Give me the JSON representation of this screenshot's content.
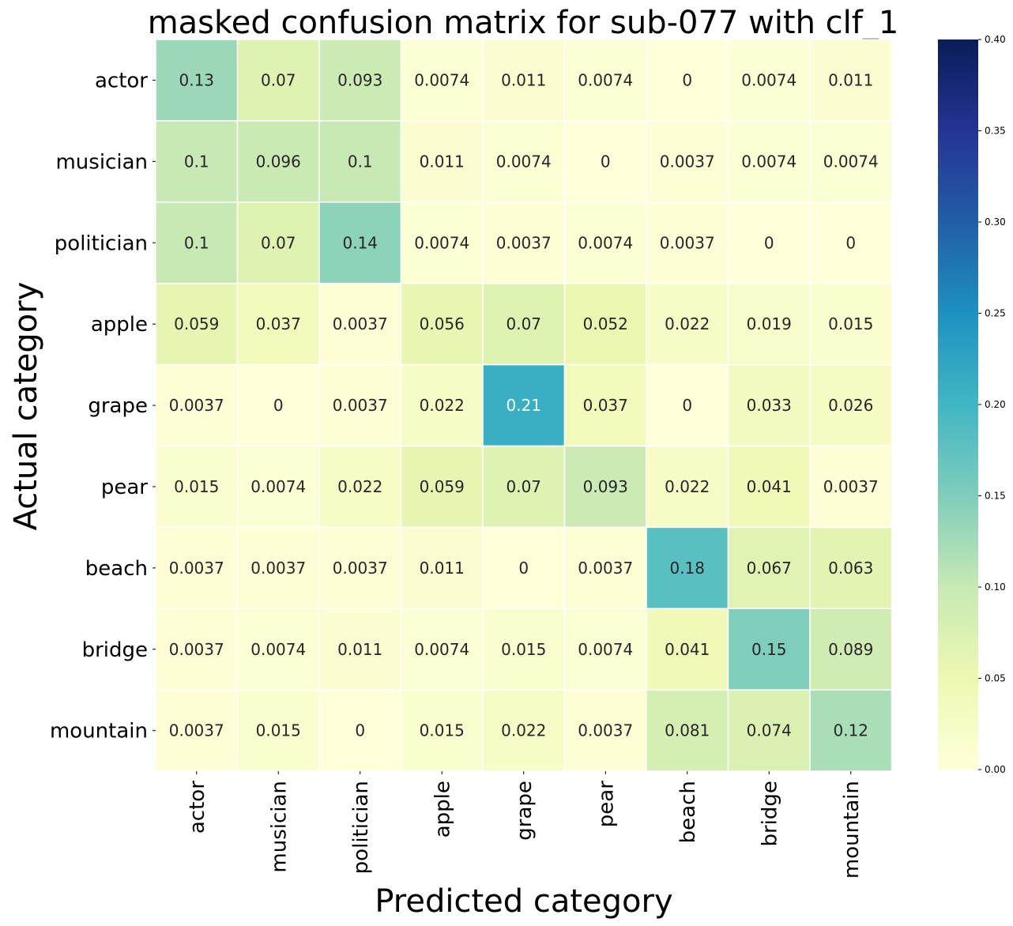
{
  "chart_data": {
    "type": "heatmap",
    "title": "masked confusion matrix for sub-077 with clf_1",
    "xlabel": "Predicted category",
    "ylabel": "Actual category",
    "categories": [
      "actor",
      "musician",
      "politician",
      "apple",
      "grape",
      "pear",
      "beach",
      "bridge",
      "mountain"
    ],
    "values": [
      [
        0.13,
        0.07,
        0.093,
        0.0074,
        0.011,
        0.0074,
        0,
        0.0074,
        0.011
      ],
      [
        0.1,
        0.096,
        0.1,
        0.011,
        0.0074,
        0,
        0.0037,
        0.0074,
        0.0074
      ],
      [
        0.1,
        0.07,
        0.14,
        0.0074,
        0.0037,
        0.0074,
        0.0037,
        0,
        0
      ],
      [
        0.059,
        0.037,
        0.0037,
        0.056,
        0.07,
        0.052,
        0.022,
        0.019,
        0.015
      ],
      [
        0.0037,
        0,
        0.0037,
        0.022,
        0.21,
        0.037,
        0,
        0.033,
        0.026
      ],
      [
        0.015,
        0.0074,
        0.022,
        0.059,
        0.07,
        0.093,
        0.022,
        0.041,
        0.0037
      ],
      [
        0.0037,
        0.0037,
        0.0037,
        0.011,
        0,
        0.0037,
        0.18,
        0.067,
        0.063
      ],
      [
        0.0037,
        0.0074,
        0.011,
        0.0074,
        0.015,
        0.0074,
        0.041,
        0.15,
        0.089
      ],
      [
        0.0037,
        0.015,
        0,
        0.015,
        0.022,
        0.0037,
        0.081,
        0.074,
        0.12
      ]
    ],
    "colormap": "YlGnBu",
    "colorbar": {
      "range": [
        0,
        0.4
      ],
      "ticks": [
        "0.00",
        "0.05",
        "0.10",
        "0.15",
        "0.20",
        "0.25",
        "0.30",
        "0.35",
        "0.40"
      ]
    }
  }
}
